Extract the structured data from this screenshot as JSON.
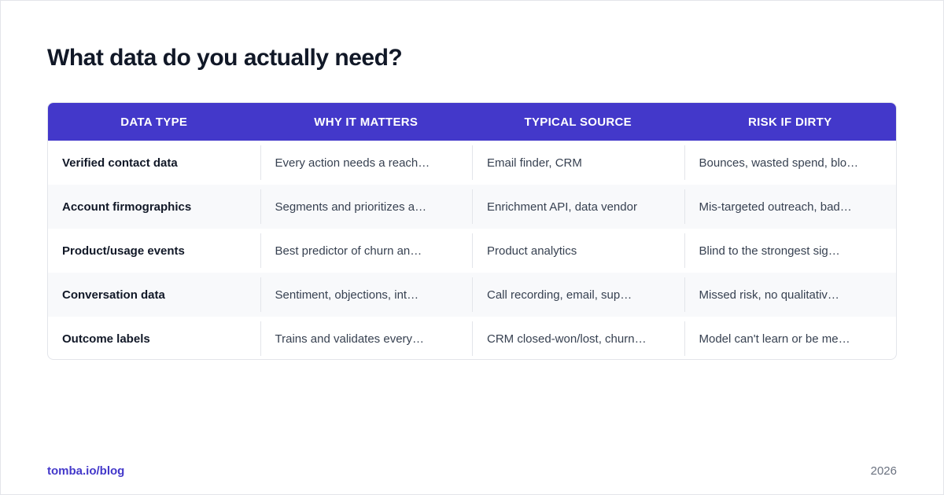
{
  "title": "What data do you actually need?",
  "table": {
    "headers": [
      "DATA TYPE",
      "WHY IT MATTERS",
      "TYPICAL SOURCE",
      "RISK IF DIRTY"
    ],
    "rows": [
      [
        "Verified contact data",
        "Every action needs a reach…",
        "Email finder, CRM",
        "Bounces, wasted spend, blo…"
      ],
      [
        "Account firmographics",
        "Segments and prioritizes a…",
        "Enrichment API, data vendor",
        "Mis-targeted outreach, bad…"
      ],
      [
        "Product/usage events",
        "Best predictor of churn an…",
        "Product analytics",
        "Blind to the strongest sig…"
      ],
      [
        "Conversation data",
        "Sentiment, objections, int…",
        "Call recording, email, sup…",
        "Missed risk, no qualitativ…"
      ],
      [
        "Outcome labels",
        "Trains and validates every…",
        "CRM closed-won/lost, churn…",
        "Model can't learn or be me…"
      ]
    ]
  },
  "footer": {
    "link": "tomba.io/blog",
    "year": "2026"
  },
  "colors": {
    "accent": "#4338ca",
    "title": "#111827",
    "alt_row": "#f8f9fb"
  }
}
